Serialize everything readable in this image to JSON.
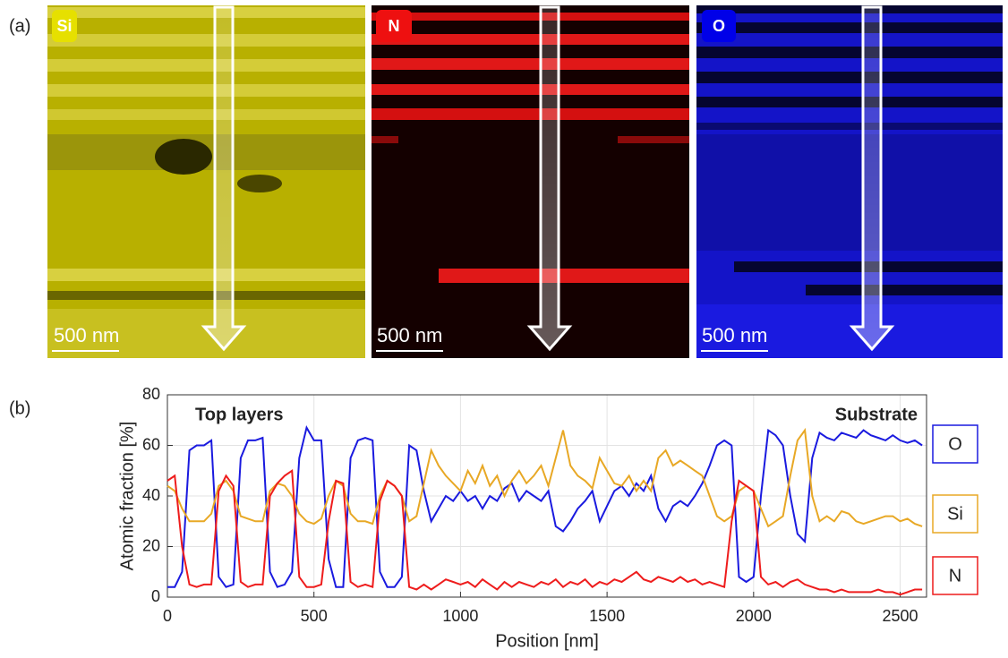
{
  "panel_a": {
    "label": "(a)",
    "maps": [
      {
        "element": "Si",
        "scale_bar": "500 nm"
      },
      {
        "element": "N",
        "scale_bar": "500 nm"
      },
      {
        "element": "O",
        "scale_bar": "500 nm"
      }
    ]
  },
  "panel_b": {
    "label": "(b)"
  },
  "chart_data": {
    "type": "line",
    "xlabel": "Position [nm]",
    "ylabel": "Atomic fraction [%]",
    "annotations": [
      "Top layers",
      "Substrate"
    ],
    "xlim": [
      0,
      2590
    ],
    "ylim": [
      0,
      80
    ],
    "xticks": [
      0,
      500,
      1000,
      1500,
      2000,
      2500
    ],
    "yticks": [
      0,
      20,
      40,
      60,
      80
    ],
    "grid": true,
    "legend": "right",
    "x": [
      0,
      25,
      50,
      75,
      100,
      125,
      150,
      175,
      200,
      225,
      250,
      275,
      300,
      325,
      350,
      375,
      400,
      425,
      450,
      475,
      500,
      525,
      550,
      575,
      600,
      625,
      650,
      675,
      700,
      725,
      750,
      775,
      800,
      825,
      850,
      875,
      900,
      925,
      950,
      975,
      1000,
      1025,
      1050,
      1075,
      1100,
      1125,
      1150,
      1175,
      1200,
      1225,
      1250,
      1275,
      1300,
      1325,
      1350,
      1375,
      1400,
      1425,
      1450,
      1475,
      1500,
      1525,
      1550,
      1575,
      1600,
      1625,
      1650,
      1675,
      1700,
      1725,
      1750,
      1775,
      1800,
      1825,
      1850,
      1875,
      1900,
      1925,
      1950,
      1975,
      2000,
      2025,
      2050,
      2075,
      2100,
      2125,
      2150,
      2175,
      2200,
      2225,
      2250,
      2275,
      2300,
      2325,
      2350,
      2375,
      2400,
      2425,
      2450,
      2475,
      2500,
      2525,
      2550,
      2575
    ],
    "series": [
      {
        "name": "O",
        "color": "#1a1adf",
        "values": [
          4,
          4,
          10,
          58,
          60,
          60,
          62,
          8,
          4,
          5,
          55,
          62,
          62,
          63,
          10,
          4,
          5,
          10,
          55,
          67,
          62,
          62,
          15,
          4,
          4,
          55,
          62,
          63,
          62,
          10,
          4,
          4,
          8,
          60,
          58,
          42,
          30,
          35,
          40,
          38,
          42,
          38,
          40,
          35,
          40,
          38,
          43,
          45,
          38,
          42,
          40,
          38,
          42,
          28,
          26,
          30,
          35,
          38,
          42,
          30,
          36,
          42,
          44,
          40,
          45,
          42,
          48,
          35,
          30,
          36,
          38,
          36,
          40,
          45,
          52,
          60,
          62,
          60,
          8,
          6,
          8,
          40,
          66,
          64,
          60,
          40,
          25,
          22,
          55,
          65,
          63,
          62,
          65,
          64,
          63,
          66,
          64,
          63,
          62,
          64,
          62,
          61,
          62,
          60
        ]
      },
      {
        "name": "Si",
        "color": "#e8a825",
        "values": [
          44,
          42,
          35,
          30,
          30,
          30,
          33,
          44,
          46,
          42,
          32,
          31,
          30,
          30,
          42,
          45,
          44,
          40,
          33,
          30,
          29,
          31,
          40,
          46,
          44,
          33,
          30,
          30,
          29,
          40,
          46,
          44,
          40,
          30,
          32,
          45,
          58,
          52,
          48,
          45,
          42,
          50,
          45,
          52,
          44,
          48,
          40,
          46,
          50,
          45,
          48,
          52,
          44,
          55,
          66,
          52,
          48,
          46,
          43,
          55,
          50,
          45,
          44,
          48,
          42,
          46,
          42,
          55,
          58,
          52,
          54,
          52,
          50,
          48,
          40,
          32,
          30,
          32,
          42,
          44,
          42,
          35,
          28,
          30,
          32,
          48,
          62,
          66,
          40,
          30,
          32,
          30,
          34,
          33,
          30,
          29,
          30,
          31,
          32,
          32,
          30,
          31,
          29,
          28
        ]
      },
      {
        "name": "N",
        "color": "#ee1c1c",
        "values": [
          46,
          48,
          20,
          5,
          4,
          5,
          5,
          42,
          48,
          44,
          6,
          4,
          5,
          5,
          40,
          45,
          48,
          50,
          8,
          4,
          4,
          5,
          30,
          46,
          45,
          6,
          4,
          5,
          4,
          38,
          46,
          44,
          40,
          4,
          3,
          5,
          3,
          5,
          7,
          6,
          5,
          6,
          4,
          7,
          5,
          3,
          6,
          4,
          6,
          5,
          4,
          6,
          5,
          7,
          4,
          6,
          5,
          7,
          4,
          6,
          5,
          7,
          6,
          8,
          10,
          7,
          6,
          8,
          7,
          6,
          8,
          6,
          7,
          5,
          6,
          5,
          4,
          30,
          46,
          44,
          42,
          8,
          5,
          6,
          4,
          6,
          7,
          5,
          4,
          3,
          3,
          2,
          3,
          2,
          2,
          2,
          2,
          3,
          2,
          2,
          1,
          2,
          3,
          3
        ]
      }
    ]
  }
}
